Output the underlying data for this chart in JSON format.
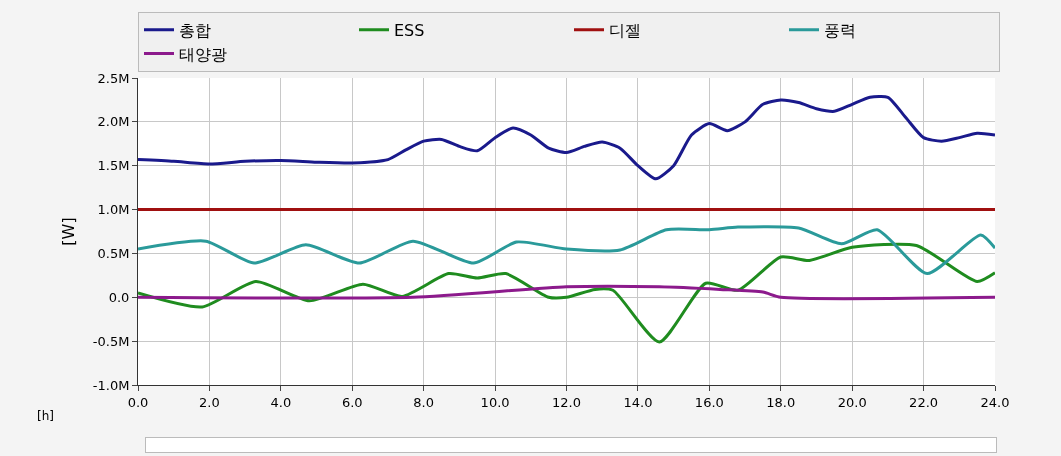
{
  "chart_data": {
    "type": "line",
    "xlabel": "[h]",
    "ylabel": "[W]",
    "legend": "top",
    "grid": true,
    "marker": "none",
    "line_style": "solid",
    "xlim": [
      0,
      24
    ],
    "xticks": [
      {
        "value": 0,
        "label": "0.0"
      },
      {
        "value": 2,
        "label": "2.0"
      },
      {
        "value": 4,
        "label": "4.0"
      },
      {
        "value": 6,
        "label": "6.0"
      },
      {
        "value": 8,
        "label": "8.0"
      },
      {
        "value": 10,
        "label": "10.0"
      },
      {
        "value": 12,
        "label": "12.0"
      },
      {
        "value": 14,
        "label": "14.0"
      },
      {
        "value": 16,
        "label": "16.0"
      },
      {
        "value": 18,
        "label": "18.0"
      },
      {
        "value": 20,
        "label": "20.0"
      },
      {
        "value": 22,
        "label": "22.0"
      },
      {
        "value": 24,
        "label": "24.0"
      }
    ],
    "ylim": [
      -1000000,
      2500000
    ],
    "yticks": [
      {
        "value": -1000000,
        "label": "-1.0M"
      },
      {
        "value": -500000,
        "label": "-0.5M"
      },
      {
        "value": 0,
        "label": "0.0"
      },
      {
        "value": 500000,
        "label": "0.5M"
      },
      {
        "value": 1000000,
        "label": "1.0M"
      },
      {
        "value": 1500000,
        "label": "1.5M"
      },
      {
        "value": 2000000,
        "label": "2.0M"
      },
      {
        "value": 2500000,
        "label": "2.5M"
      }
    ],
    "series": [
      {
        "name": "총합",
        "color": "#1a1a8c",
        "x": [
          0,
          1,
          2,
          3,
          4,
          5,
          6,
          7,
          7.5,
          8,
          8.5,
          9,
          9.5,
          10,
          10.5,
          11,
          11.5,
          12,
          12.5,
          13,
          13.5,
          14,
          14.5,
          15,
          15.5,
          16,
          16.5,
          17,
          17.5,
          18,
          18.5,
          19,
          19.5,
          20,
          20.5,
          21,
          21.5,
          22,
          22.5,
          23,
          23.5,
          24
        ],
        "values": [
          1570000,
          1550000,
          1520000,
          1550000,
          1560000,
          1540000,
          1530000,
          1570000,
          1680000,
          1780000,
          1800000,
          1720000,
          1670000,
          1820000,
          1930000,
          1850000,
          1700000,
          1650000,
          1720000,
          1770000,
          1700000,
          1500000,
          1350000,
          1500000,
          1850000,
          1980000,
          1900000,
          2000000,
          2200000,
          2250000,
          2220000,
          2150000,
          2120000,
          2200000,
          2280000,
          2280000,
          2050000,
          1820000,
          1780000,
          1820000,
          1870000,
          1850000
        ]
      },
      {
        "name": "ESS",
        "color": "#1f8c1f",
        "x": [
          0,
          1.8,
          3.3,
          4.8,
          6.3,
          7.4,
          8.7,
          9.5,
          10.3,
          11.5,
          12,
          12.8,
          13.3,
          14.6,
          15.9,
          16.8,
          18,
          18.8,
          20,
          21.8,
          23.5,
          24
        ],
        "values": [
          50000,
          -110000,
          180000,
          -40000,
          150000,
          10000,
          270000,
          220000,
          270000,
          0,
          0,
          90000,
          80000,
          -510000,
          160000,
          80000,
          460000,
          420000,
          570000,
          590000,
          180000,
          280000
        ]
      },
      {
        "name": "디젤",
        "color": "#a01010",
        "x": [
          0,
          24
        ],
        "values": [
          1000000,
          1000000
        ]
      },
      {
        "name": "풍력",
        "color": "#2a9a9a",
        "x": [
          0,
          1.9,
          3.25,
          4.7,
          6.2,
          7.7,
          9.4,
          10.6,
          12,
          13.5,
          14.8,
          16,
          16.8,
          18.5,
          19.7,
          20.7,
          22.1,
          23.6,
          24
        ],
        "values": [
          550000,
          640000,
          390000,
          600000,
          390000,
          640000,
          390000,
          630000,
          550000,
          540000,
          770000,
          770000,
          800000,
          790000,
          610000,
          770000,
          270000,
          710000,
          560000
        ]
      },
      {
        "name": "태양광",
        "color": "#8c1a8c",
        "x": [
          0,
          7.7,
          12,
          14.6,
          16.3,
          17.5,
          18,
          24
        ],
        "values": [
          0,
          0,
          120000,
          120000,
          90000,
          60000,
          0,
          0
        ]
      }
    ]
  }
}
